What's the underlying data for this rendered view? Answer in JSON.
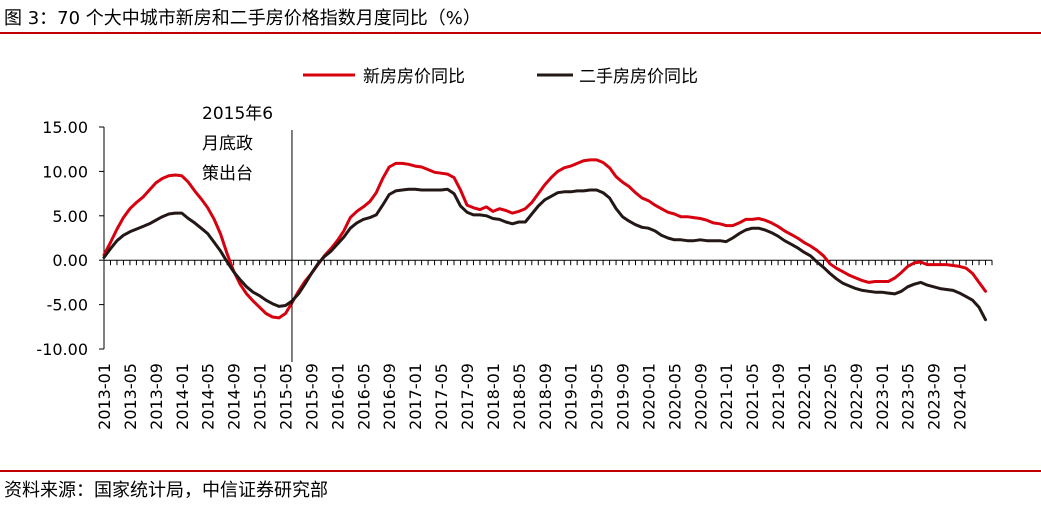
{
  "figure": {
    "title": "图 3：70 个大中城市新房和二手房价格指数月度同比（%）",
    "source": "资料来源：国家统计局，中信证券研究部"
  },
  "chart_data": {
    "type": "line",
    "x_start": "2013-01",
    "x_end": "2024-06",
    "x_tick_labels": [
      "2013-01",
      "2013-05",
      "2013-09",
      "2014-01",
      "2014-05",
      "2014-09",
      "2015-01",
      "2015-05",
      "2015-09",
      "2016-01",
      "2016-05",
      "2016-09",
      "2017-01",
      "2017-05",
      "2017-09",
      "2018-01",
      "2018-05",
      "2018-09",
      "2019-01",
      "2019-05",
      "2019-09",
      "2020-01",
      "2020-05",
      "2020-09",
      "2021-01",
      "2021-05",
      "2021-09",
      "2022-01",
      "2022-05",
      "2022-09",
      "2023-01",
      "2023-05",
      "2023-09",
      "2024-01"
    ],
    "y_tick_labels": [
      "15.00",
      "10.00",
      "5.00",
      "0.00",
      "-5.00",
      "-10.00"
    ],
    "ylim": [
      -10,
      15
    ],
    "grid": false,
    "legend_position": "top-center",
    "annotation": {
      "lines": [
        "2015年6",
        "月底政",
        "策出台"
      ],
      "x": "2015-06"
    },
    "series": [
      {
        "name": "新房房价同比",
        "color": "#d7000f",
        "values": [
          0.6,
          2.0,
          3.5,
          4.8,
          5.8,
          6.5,
          7.1,
          7.9,
          8.7,
          9.2,
          9.5,
          9.6,
          9.5,
          8.8,
          7.8,
          6.9,
          5.9,
          4.6,
          2.9,
          0.7,
          -1.2,
          -2.7,
          -3.8,
          -4.6,
          -5.3,
          -6.0,
          -6.4,
          -6.5,
          -6.0,
          -4.8,
          -3.5,
          -2.4,
          -1.5,
          -0.5,
          0.5,
          1.3,
          2.2,
          3.3,
          4.8,
          5.5,
          6.0,
          6.6,
          7.6,
          9.2,
          10.5,
          10.9,
          10.9,
          10.8,
          10.6,
          10.5,
          10.2,
          9.9,
          9.8,
          9.7,
          9.3,
          7.9,
          6.2,
          5.9,
          5.7,
          6.0,
          5.5,
          5.8,
          5.6,
          5.3,
          5.5,
          5.8,
          6.5,
          7.5,
          8.5,
          9.3,
          10.0,
          10.4,
          10.6,
          10.9,
          11.2,
          11.3,
          11.3,
          11.0,
          10.4,
          9.4,
          8.8,
          8.3,
          7.6,
          7.0,
          6.7,
          6.2,
          5.8,
          5.4,
          5.2,
          4.9,
          4.9,
          4.8,
          4.7,
          4.5,
          4.2,
          4.1,
          3.9,
          3.9,
          4.2,
          4.6,
          4.6,
          4.7,
          4.5,
          4.2,
          3.8,
          3.3,
          2.9,
          2.5,
          2.0,
          1.6,
          1.1,
          0.5,
          -0.4,
          -0.9,
          -1.3,
          -1.7,
          -2.0,
          -2.3,
          -2.5,
          -2.4,
          -2.4,
          -2.4,
          -2.0,
          -1.4,
          -0.7,
          -0.3,
          -0.2,
          -0.5,
          -0.5,
          -0.5,
          -0.5,
          -0.6,
          -0.7,
          -0.9,
          -1.5,
          -2.5,
          -3.5
        ]
      },
      {
        "name": "二手房房价同比",
        "color": "#231815",
        "values": [
          0.3,
          1.3,
          2.2,
          2.8,
          3.2,
          3.5,
          3.8,
          4.1,
          4.5,
          4.9,
          5.2,
          5.3,
          5.3,
          4.7,
          4.2,
          3.6,
          3.0,
          2.0,
          1.0,
          -0.2,
          -1.3,
          -2.2,
          -3.0,
          -3.6,
          -4.0,
          -4.5,
          -4.9,
          -5.2,
          -5.1,
          -4.6,
          -3.8,
          -2.7,
          -1.5,
          -0.4,
          0.4,
          1.0,
          1.8,
          2.6,
          3.6,
          4.2,
          4.6,
          4.8,
          5.1,
          6.2,
          7.4,
          7.8,
          7.9,
          8.0,
          8.0,
          7.9,
          7.9,
          7.9,
          7.9,
          8.0,
          7.5,
          6.1,
          5.4,
          5.1,
          5.1,
          5.0,
          4.7,
          4.6,
          4.3,
          4.1,
          4.3,
          4.3,
          5.2,
          6.1,
          6.8,
          7.2,
          7.6,
          7.7,
          7.7,
          7.8,
          7.8,
          7.9,
          7.9,
          7.6,
          7.0,
          5.8,
          4.9,
          4.4,
          4.0,
          3.7,
          3.6,
          3.3,
          2.8,
          2.5,
          2.3,
          2.3,
          2.2,
          2.2,
          2.3,
          2.2,
          2.2,
          2.2,
          2.1,
          2.5,
          3.0,
          3.4,
          3.6,
          3.6,
          3.4,
          3.1,
          2.7,
          2.2,
          1.8,
          1.4,
          0.9,
          0.5,
          -0.2,
          -0.8,
          -1.5,
          -2.1,
          -2.6,
          -2.9,
          -3.2,
          -3.4,
          -3.5,
          -3.6,
          -3.6,
          -3.7,
          -3.8,
          -3.5,
          -3.0,
          -2.7,
          -2.5,
          -2.8,
          -3.0,
          -3.2,
          -3.3,
          -3.4,
          -3.7,
          -4.1,
          -4.5,
          -5.3,
          -6.7
        ]
      }
    ]
  }
}
